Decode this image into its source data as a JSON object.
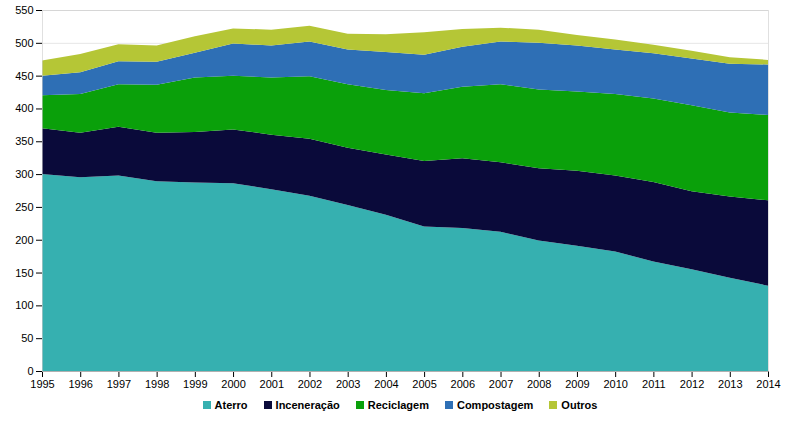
{
  "chart_data": {
    "type": "stacked_area",
    "stacked": true,
    "grid": true,
    "legend": "bottom",
    "x": [
      1995,
      1996,
      1997,
      1998,
      1999,
      2000,
      2001,
      2002,
      2003,
      2004,
      2005,
      2006,
      2007,
      2008,
      2009,
      2010,
      2011,
      2012,
      2013,
      2014
    ],
    "xlim": [
      1995,
      2014
    ],
    "xticks": [
      1995,
      1996,
      1997,
      1998,
      1999,
      2000,
      2001,
      2002,
      2003,
      2004,
      2005,
      2006,
      2007,
      2008,
      2009,
      2010,
      2011,
      2012,
      2013,
      2014
    ],
    "ylim": [
      0,
      550
    ],
    "yticks": [
      0,
      50,
      100,
      150,
      200,
      250,
      300,
      350,
      400,
      450,
      500,
      550
    ],
    "series": [
      {
        "name": "Aterro",
        "color": "#36b0b0",
        "values": [
          300,
          295,
          298,
          289,
          287,
          286,
          277,
          267,
          253,
          238,
          220,
          218,
          212,
          199,
          191,
          182,
          167,
          155,
          142,
          130
        ]
      },
      {
        "name": "Inceneração",
        "color": "#0a0a3a",
        "values": [
          70,
          68,
          74,
          74,
          77,
          82,
          83,
          87,
          87,
          92,
          100,
          106,
          106,
          110,
          114,
          116,
          121,
          119,
          124,
          130
        ]
      },
      {
        "name": "Reciclagem",
        "color": "#0aa00a",
        "values": [
          50,
          59,
          65,
          73,
          83,
          82,
          87,
          95,
          97,
          98,
          103,
          109,
          119,
          120,
          121,
          124,
          127,
          131,
          128,
          130
        ]
      },
      {
        "name": "Compostagem",
        "color": "#2e6fb5",
        "values": [
          30,
          33,
          35,
          35,
          38,
          49,
          49,
          53,
          53,
          58,
          59,
          61,
          65,
          71,
          70,
          68,
          69,
          71,
          74,
          77
        ]
      },
      {
        "name": "Outros",
        "color": "#b5c636",
        "values": [
          23,
          28,
          26,
          25,
          25,
          23,
          24,
          24,
          24,
          27,
          34,
          27,
          21,
          20,
          16,
          15,
          13,
          12,
          10,
          7
        ]
      }
    ]
  }
}
